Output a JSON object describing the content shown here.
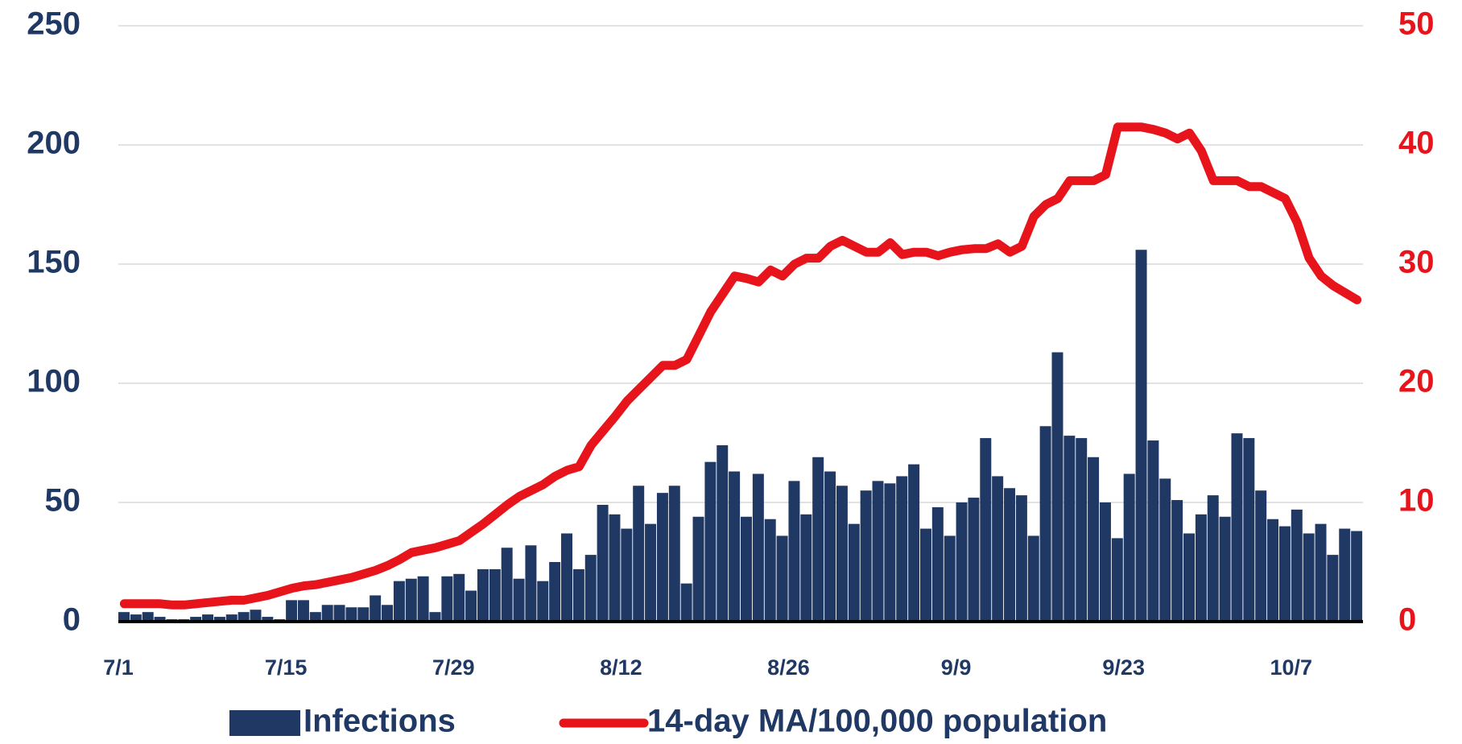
{
  "chart_data": {
    "type": "bar-line",
    "categories": [
      "7/1",
      null,
      null,
      null,
      null,
      null,
      null,
      null,
      null,
      null,
      null,
      null,
      null,
      null,
      "7/15",
      null,
      null,
      null,
      null,
      null,
      null,
      null,
      null,
      null,
      null,
      null,
      null,
      null,
      "7/29",
      null,
      null,
      null,
      null,
      null,
      null,
      null,
      null,
      null,
      null,
      null,
      null,
      null,
      "8/12",
      null,
      null,
      null,
      null,
      null,
      null,
      null,
      null,
      null,
      null,
      null,
      null,
      null,
      "8/26",
      null,
      null,
      null,
      null,
      null,
      null,
      null,
      null,
      null,
      null,
      null,
      null,
      null,
      "9/9",
      null,
      null,
      null,
      null,
      null,
      null,
      null,
      null,
      null,
      null,
      null,
      null,
      null,
      "9/23",
      null,
      null,
      null,
      null,
      null,
      null,
      null,
      null,
      null,
      null,
      null,
      null,
      null,
      "10/7",
      null,
      null,
      null,
      null,
      null
    ],
    "series": [
      {
        "name": "Infections",
        "color": "#1f3864",
        "type": "bar",
        "values": [
          4,
          3,
          4,
          2,
          1,
          1,
          2,
          3,
          2,
          3,
          4,
          5,
          2,
          1,
          9,
          9,
          4,
          7,
          7,
          6,
          6,
          11,
          7,
          17,
          18,
          19,
          4,
          19,
          20,
          13,
          22,
          22,
          31,
          18,
          32,
          17,
          25,
          37,
          22,
          28,
          49,
          45,
          39,
          57,
          41,
          54,
          57,
          16,
          44,
          67,
          74,
          63,
          44,
          62,
          43,
          36,
          59,
          45,
          69,
          63,
          57,
          41,
          55,
          59,
          58,
          61,
          66,
          39,
          48,
          36,
          50,
          52,
          77,
          61,
          56,
          53,
          36,
          82,
          113,
          78,
          77,
          69,
          50,
          35,
          62,
          156,
          76,
          60,
          51,
          37,
          45,
          53,
          44,
          79,
          77,
          55,
          43,
          40,
          47,
          37,
          41,
          28,
          39,
          38
        ]
      },
      {
        "name": "14-day MA/100,000 population",
        "color": "#e8141b",
        "type": "line",
        "axis": "y2",
        "values": [
          1.5,
          1.5,
          1.5,
          1.5,
          1.4,
          1.4,
          1.5,
          1.6,
          1.7,
          1.8,
          1.8,
          2,
          2.2,
          2.5,
          2.8,
          3,
          3.1,
          3.3,
          3.5,
          3.7,
          4,
          4.3,
          4.7,
          5.2,
          5.8,
          6,
          6.2,
          6.5,
          6.8,
          7.5,
          8.2,
          9,
          9.8,
          10.5,
          11,
          11.5,
          12.2,
          12.7,
          13,
          14.8,
          16,
          17.2,
          18.5,
          19.5,
          20.5,
          21.5,
          21.5,
          22,
          24,
          26,
          27.5,
          29,
          28.8,
          28.5,
          29.5,
          29,
          30,
          30.5,
          30.5,
          31.5,
          32,
          31.5,
          31,
          31,
          31.8,
          30.8,
          31,
          31,
          30.7,
          31,
          31.2,
          31.3,
          31.3,
          31.7,
          31,
          31.5,
          34,
          35,
          35.5,
          37,
          37,
          37,
          37.5,
          41.5,
          41.5,
          41.5,
          41.3,
          41,
          40.5,
          41,
          39.5,
          37,
          37,
          37,
          36.5,
          36.5,
          36,
          35.5,
          33.5,
          30.5,
          29,
          28.2,
          27.6,
          27
        ]
      }
    ],
    "ylim": [
      0,
      250
    ],
    "yticks": [
      0,
      50,
      100,
      150,
      200,
      250
    ],
    "y2lim": [
      0,
      50
    ],
    "y2ticks": [
      0,
      10,
      20,
      30,
      40,
      50
    ],
    "grid": true,
    "legend": "bottom"
  }
}
